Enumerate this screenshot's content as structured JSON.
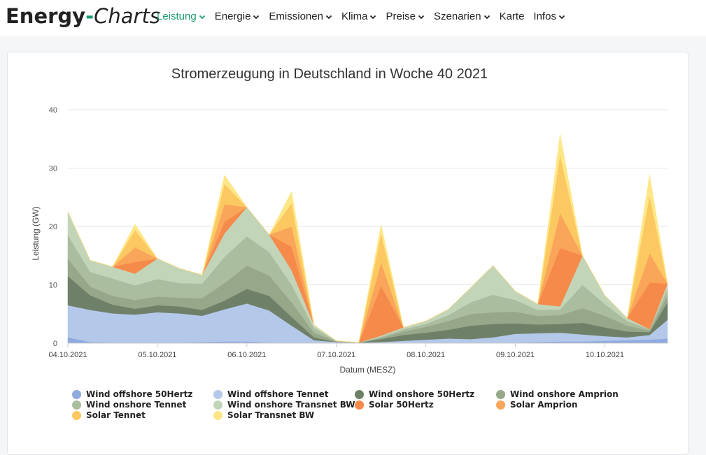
{
  "brand": {
    "part1": "Energy",
    "dash": "-",
    "part2": "Charts"
  },
  "nav": [
    {
      "label": "Leistung",
      "active": true
    },
    {
      "label": "Energie",
      "active": false
    },
    {
      "label": "Emissionen",
      "active": false
    },
    {
      "label": "Klima",
      "active": false
    },
    {
      "label": "Preise",
      "active": false
    },
    {
      "label": "Szenarien",
      "active": false
    },
    {
      "label": "Karte",
      "active": false,
      "nochev": true
    },
    {
      "label": "Infos",
      "active": false
    }
  ],
  "chart_data": {
    "type": "area",
    "stacked": true,
    "title": "Stromerzeugung in Deutschland in Woche 40 2021",
    "xlabel": "Datum (MESZ)",
    "ylabel": "Leistung (GW)",
    "ylim": [
      0,
      40
    ],
    "yticks": [
      "0",
      "10",
      "20",
      "30",
      "40"
    ],
    "xlim": [
      0,
      6.7
    ],
    "xticks": [
      {
        "day": 0,
        "label": "04.10.2021"
      },
      {
        "day": 1,
        "label": "05.10.2021"
      },
      {
        "day": 2,
        "label": "06.10.2021"
      },
      {
        "day": 3,
        "label": "07.10.2021"
      },
      {
        "day": 4,
        "label": "08.10.2021"
      },
      {
        "day": 5,
        "label": "09.10.2021"
      },
      {
        "day": 6,
        "label": "10.10.2021"
      }
    ],
    "grid": true,
    "x": [
      0,
      0.25,
      0.5,
      0.75,
      1,
      1.25,
      1.5,
      1.75,
      2,
      2.25,
      2.5,
      2.75,
      3,
      3.25,
      3.5,
      3.75,
      4,
      4.25,
      4.5,
      4.75,
      5,
      5.25,
      5.5,
      5.75,
      6,
      6.25,
      6.5,
      6.7
    ],
    "series": [
      {
        "name": "Wind offshore 50Hertz",
        "color": "#8eaadf",
        "values": [
          1,
          0.2,
          0.1,
          0.1,
          0.1,
          0.1,
          0.2,
          0.3,
          0.3,
          0.1,
          0,
          0,
          0,
          0,
          0,
          0,
          0,
          0,
          0,
          0,
          0.1,
          0.2,
          0.3,
          0.3,
          0.4,
          0.5,
          0.6,
          0.8
        ]
      },
      {
        "name": "Wind offshore Tennet",
        "color": "#b4c8ea",
        "values": [
          5.5,
          5.5,
          5,
          4.8,
          5.2,
          5,
          4.5,
          5.5,
          6.5,
          5.5,
          3,
          0.5,
          0.2,
          0.1,
          0.2,
          0.4,
          0.6,
          0.8,
          0.7,
          1,
          1.5,
          1.5,
          1.5,
          1.2,
          0.8,
          0.5,
          0.8,
          3.2
        ]
      },
      {
        "name": "Wind onshore 50Hertz",
        "color": "#6f8068",
        "values": [
          5,
          2.5,
          1.5,
          1,
          1.2,
          1.2,
          1,
          1.5,
          2.5,
          2.5,
          1.5,
          0.5,
          0,
          0,
          0.5,
          1,
          1.2,
          1.5,
          2.3,
          2.3,
          1.8,
          1.5,
          1.5,
          2,
          1.5,
          1,
          0.5,
          3
        ]
      },
      {
        "name": "Wind onshore Amprion",
        "color": "#96a889",
        "values": [
          3,
          1.5,
          1.5,
          1.5,
          1.5,
          1.5,
          2,
          3,
          4,
          3.5,
          2.5,
          0.8,
          0.1,
          0,
          0.2,
          0.6,
          1,
          1.5,
          2,
          2,
          2,
          1.5,
          1.5,
          2.5,
          2,
          1,
          0.3,
          1.2
        ]
      },
      {
        "name": "Wind onshore Tennet",
        "color": "#abbd9f",
        "values": [
          4,
          2.5,
          3,
          2.5,
          3,
          2.5,
          2.5,
          4.5,
          5,
          4,
          3,
          0.8,
          0.1,
          0,
          0.2,
          0.4,
          0.5,
          1,
          2,
          3,
          2,
          1,
          1,
          4,
          2,
          0.8,
          0.2,
          1.2
        ]
      },
      {
        "name": "Wind onshore Transnet BW",
        "color": "#c3d5b8",
        "values": [
          4,
          2,
          2,
          2,
          3.5,
          2.5,
          1.5,
          4,
          5,
          3,
          2.5,
          0.5,
          0,
          0,
          0.2,
          0.3,
          0.5,
          1,
          2.5,
          5,
          1.5,
          1,
          0.5,
          5,
          1.5,
          0.5,
          0,
          0.8
        ]
      },
      {
        "name": "Solar 50Hertz",
        "color": "#f58a4b",
        "values": [
          0,
          0,
          0,
          2,
          0,
          0,
          0,
          2,
          0,
          0,
          4,
          0,
          0,
          0,
          8.5,
          0,
          0,
          0,
          0,
          0,
          0,
          0,
          10,
          0,
          0,
          0,
          8,
          0
        ]
      },
      {
        "name": "Solar Amprion",
        "color": "#f9a55a",
        "values": [
          0,
          0,
          0,
          2.5,
          0,
          0,
          0,
          3,
          0,
          0,
          3.5,
          0,
          0,
          0,
          4,
          0,
          0,
          0,
          0,
          0,
          0,
          0,
          6,
          0,
          0,
          0,
          5,
          0
        ]
      },
      {
        "name": "Solar Tennet",
        "color": "#fbc862",
        "values": [
          0,
          0,
          0,
          3,
          0,
          0,
          0,
          3.5,
          0,
          0,
          4,
          0,
          0,
          0,
          5,
          0,
          0,
          0,
          0,
          0,
          0,
          0,
          10,
          0,
          0,
          0,
          10,
          0
        ]
      },
      {
        "name": "Solar Transnet BW",
        "color": "#fde786",
        "values": [
          0,
          0,
          0,
          1,
          0,
          0,
          0,
          1.5,
          0,
          0,
          2,
          0,
          0,
          0,
          1.5,
          0,
          0,
          0,
          0,
          0,
          0,
          0,
          3.5,
          0,
          0,
          0,
          3.5,
          0
        ]
      }
    ]
  }
}
